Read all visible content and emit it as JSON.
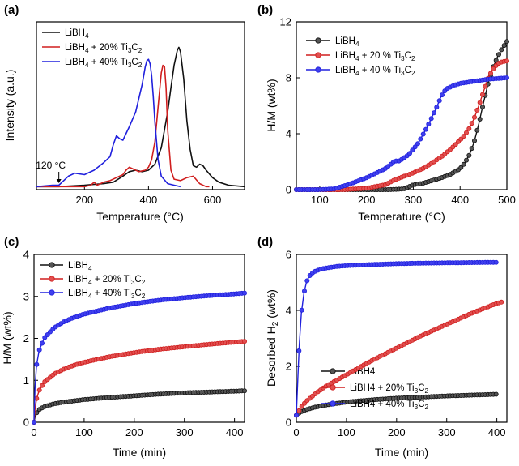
{
  "colors": {
    "black": "#111111",
    "red": "#d01e1e",
    "blue": "#2020dd",
    "marker_black": "#555555",
    "marker_red": "#e15050",
    "marker_blue": "#4040ee"
  },
  "chart_data": [
    {
      "panel": "(a)",
      "type": "line",
      "xlabel": "Temperature (°C)",
      "ylabel": "Intensity (a.u.)",
      "xlim": [
        50,
        700
      ],
      "ylim": [
        0,
        1.12
      ],
      "xticks": [
        200,
        400,
        600
      ],
      "yticks": [],
      "legend_position": "top-left",
      "annotation": {
        "text": "120 °C",
        "x": 120
      },
      "series": [
        {
          "name": "LiBH₄",
          "color": "black",
          "x": [
            50,
            120,
            200,
            260,
            290,
            320,
            340,
            360,
            380,
            400,
            420,
            440,
            460,
            470,
            480,
            490,
            495,
            500,
            510,
            520,
            530,
            540,
            550,
            560,
            570,
            580,
            600,
            620,
            650,
            700
          ],
          "y": [
            0.02,
            0.02,
            0.03,
            0.04,
            0.05,
            0.09,
            0.12,
            0.13,
            0.12,
            0.13,
            0.17,
            0.28,
            0.52,
            0.68,
            0.83,
            0.93,
            0.95,
            0.92,
            0.74,
            0.46,
            0.27,
            0.16,
            0.15,
            0.17,
            0.16,
            0.13,
            0.08,
            0.05,
            0.03,
            0.02
          ]
        },
        {
          "name": "LiBH₄ + 20% Ti₃C₂",
          "color": "red",
          "x": [
            50,
            120,
            200,
            220,
            230,
            240,
            260,
            280,
            300,
            320,
            330,
            340,
            350,
            370,
            390,
            400,
            410,
            420,
            430,
            440,
            445,
            450,
            455,
            460,
            470,
            480,
            500,
            520,
            540,
            560,
            580,
            590
          ],
          "y": [
            0.02,
            0.02,
            0.02,
            0.03,
            0.05,
            0.03,
            0.05,
            0.06,
            0.08,
            0.1,
            0.13,
            0.15,
            0.14,
            0.12,
            0.13,
            0.15,
            0.2,
            0.32,
            0.55,
            0.78,
            0.83,
            0.82,
            0.68,
            0.4,
            0.13,
            0.07,
            0.06,
            0.08,
            0.09,
            0.04,
            0.02,
            0.02
          ]
        },
        {
          "name": "LiBH₄ + 40% Ti₃C₂",
          "color": "blue",
          "x": [
            50,
            100,
            120,
            130,
            150,
            170,
            200,
            230,
            260,
            280,
            290,
            300,
            310,
            320,
            340,
            360,
            380,
            390,
            395,
            400,
            405,
            410,
            415,
            420,
            430,
            440,
            460,
            480,
            500
          ],
          "y": [
            0.02,
            0.03,
            0.03,
            0.05,
            0.09,
            0.11,
            0.1,
            0.13,
            0.18,
            0.22,
            0.3,
            0.36,
            0.34,
            0.33,
            0.42,
            0.52,
            0.7,
            0.82,
            0.86,
            0.87,
            0.84,
            0.76,
            0.62,
            0.45,
            0.2,
            0.09,
            0.04,
            0.03,
            0.02
          ]
        }
      ]
    },
    {
      "panel": "(b)",
      "type": "line",
      "xlabel": "Temperature (°C)",
      "ylabel": "H/M (wt%)",
      "xlim": [
        50,
        500
      ],
      "ylim": [
        0,
        12
      ],
      "xticks": [
        100,
        200,
        300,
        400,
        500
      ],
      "yticks": [
        0,
        4,
        8,
        12
      ],
      "legend_position": "top-left",
      "series": [
        {
          "name": "LiBH₄",
          "color": "black",
          "x": [
            50,
            150,
            250,
            280,
            300,
            320,
            340,
            360,
            380,
            400,
            410,
            420,
            430,
            440,
            450,
            460,
            470,
            480,
            490,
            500
          ],
          "y": [
            0,
            0,
            0,
            0.05,
            0.35,
            0.45,
            0.65,
            0.85,
            1.1,
            1.5,
            1.9,
            2.5,
            3.4,
            4.7,
            6.2,
            7.6,
            8.7,
            9.5,
            10.1,
            10.6
          ]
        },
        {
          "name": "LiBH₄ + 20 % Ti₃C₂",
          "color": "red",
          "x": [
            50,
            150,
            200,
            240,
            260,
            280,
            300,
            320,
            340,
            360,
            380,
            400,
            410,
            420,
            430,
            440,
            450,
            460,
            470,
            480,
            490,
            500
          ],
          "y": [
            0,
            0,
            0.1,
            0.35,
            0.7,
            0.95,
            1.2,
            1.5,
            1.9,
            2.35,
            2.9,
            3.55,
            3.9,
            4.4,
            5.1,
            6.0,
            7.0,
            8.0,
            8.6,
            9.0,
            9.15,
            9.2
          ]
        },
        {
          "name": "LiBH₄ + 40 % Ti₃C₂",
          "color": "blue",
          "x": [
            50,
            100,
            130,
            160,
            200,
            240,
            255,
            260,
            270,
            290,
            310,
            330,
            350,
            360,
            370,
            380,
            390,
            400,
            420,
            440,
            460,
            480,
            500
          ],
          "y": [
            0,
            0,
            0.05,
            0.35,
            0.85,
            1.5,
            1.9,
            2.05,
            2.05,
            2.5,
            3.3,
            4.5,
            5.9,
            6.7,
            7.2,
            7.35,
            7.5,
            7.6,
            7.7,
            7.8,
            7.9,
            7.95,
            8.0
          ]
        }
      ]
    },
    {
      "panel": "(c)",
      "type": "line",
      "xlabel": "Time (min)",
      "ylabel": "H/M (wt%)",
      "xlim": [
        0,
        420
      ],
      "ylim": [
        0,
        4
      ],
      "xticks": [
        0,
        100,
        200,
        300,
        400
      ],
      "yticks": [
        0,
        1,
        2,
        3,
        4
      ],
      "legend_position": "top-left",
      "series": [
        {
          "name": "LiBH₄",
          "color": "black",
          "x": [
            0,
            2,
            5,
            10,
            20,
            40,
            60,
            80,
            100,
            150,
            200,
            250,
            300,
            350,
            400,
            420
          ],
          "y": [
            0,
            0.12,
            0.22,
            0.3,
            0.37,
            0.44,
            0.48,
            0.51,
            0.54,
            0.59,
            0.63,
            0.67,
            0.7,
            0.72,
            0.74,
            0.75
          ]
        },
        {
          "name": "LiBH₄ + 20% Ti₃C₂",
          "color": "red",
          "x": [
            0,
            2,
            5,
            10,
            20,
            40,
            60,
            80,
            100,
            150,
            200,
            250,
            300,
            350,
            400,
            420
          ],
          "y": [
            0,
            0.3,
            0.55,
            0.75,
            0.95,
            1.15,
            1.27,
            1.36,
            1.43,
            1.56,
            1.66,
            1.74,
            1.8,
            1.86,
            1.91,
            1.93
          ]
        },
        {
          "name": "LiBH₄ + 40% Ti₃C₂",
          "color": "blue",
          "x": [
            0,
            2,
            5,
            10,
            20,
            40,
            60,
            80,
            100,
            150,
            200,
            250,
            300,
            350,
            400,
            420
          ],
          "y": [
            0,
            0.8,
            1.35,
            1.7,
            2.0,
            2.25,
            2.4,
            2.5,
            2.58,
            2.72,
            2.83,
            2.91,
            2.97,
            3.02,
            3.06,
            3.08
          ]
        }
      ]
    },
    {
      "panel": "(d)",
      "type": "line",
      "xlabel": "Time (min)",
      "ylabel": "Desorbed H₂ (wt%)",
      "xlim": [
        0,
        420
      ],
      "ylim": [
        0,
        6
      ],
      "xticks": [
        0,
        100,
        200,
        300,
        400
      ],
      "yticks": [
        0,
        2,
        4,
        6
      ],
      "legend_position": "center-right",
      "series": [
        {
          "name": "LiBH4",
          "color": "black",
          "x": [
            0,
            5,
            10,
            20,
            40,
            60,
            80,
            100,
            150,
            200,
            250,
            300,
            350,
            400
          ],
          "y": [
            0.25,
            0.32,
            0.38,
            0.45,
            0.55,
            0.62,
            0.67,
            0.72,
            0.8,
            0.86,
            0.9,
            0.94,
            0.97,
            1.0
          ]
        },
        {
          "name": "LiBH4 + 20% Ti₃C₂",
          "color": "red",
          "x": [
            0,
            5,
            10,
            20,
            40,
            60,
            80,
            100,
            150,
            200,
            250,
            300,
            350,
            400,
            410
          ],
          "y": [
            0.25,
            0.4,
            0.55,
            0.75,
            1.05,
            1.3,
            1.5,
            1.7,
            2.2,
            2.65,
            3.1,
            3.5,
            3.9,
            4.25,
            4.3
          ]
        },
        {
          "name": "LiBH4 + 40% Ti₃C₂",
          "color": "blue",
          "x": [
            0,
            3,
            6,
            10,
            15,
            20,
            25,
            30,
            40,
            50,
            60,
            80,
            100,
            150,
            200,
            250,
            300,
            350,
            400
          ],
          "y": [
            0.25,
            1.6,
            2.8,
            3.9,
            4.6,
            5.0,
            5.2,
            5.32,
            5.42,
            5.48,
            5.52,
            5.57,
            5.6,
            5.64,
            5.67,
            5.69,
            5.7,
            5.71,
            5.72
          ]
        }
      ]
    }
  ]
}
